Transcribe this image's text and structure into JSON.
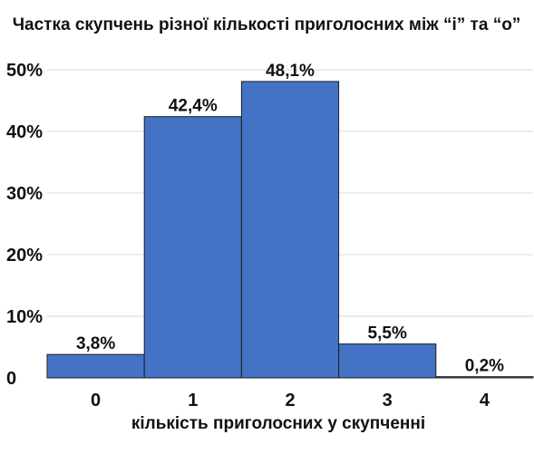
{
  "chart_data": {
    "type": "bar",
    "title": "Частка скупчень різної кількості приголосних між “і” та “о”",
    "xlabel": "кількість приголосних у скупченні",
    "ylabel": "",
    "categories": [
      "0",
      "1",
      "2",
      "3",
      "4"
    ],
    "values": [
      3.8,
      42.4,
      48.1,
      5.5,
      0.2
    ],
    "data_labels": [
      "3,8%",
      "42,4%",
      "48,1%",
      "5,5%",
      "0,2%"
    ],
    "ylim": [
      0,
      50
    ],
    "y_ticks": [
      0,
      10,
      20,
      30,
      40,
      50
    ],
    "y_tick_labels": [
      "0",
      "10%",
      "20%",
      "30%",
      "40%",
      "50%"
    ],
    "grid": true,
    "bar_gap": 0,
    "colors": {
      "bar_fill": "#4472c4",
      "bar_edge": "#1f1f1f",
      "grid": "#d9d9d9"
    }
  }
}
